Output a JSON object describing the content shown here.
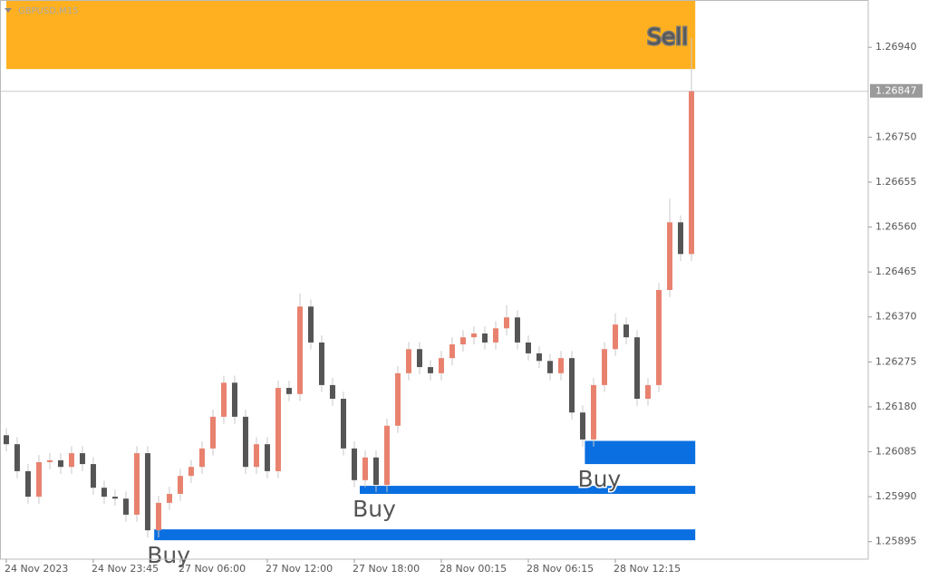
{
  "chart_data": {
    "type": "candlestick",
    "title": "GBPUSD,M15",
    "open": [
      1.2612,
      1.26101,
      1.26044,
      1.2599,
      1.26063,
      1.26067,
      1.26053,
      1.26082,
      1.26059,
      1.26009,
      1.2599,
      1.25986,
      1.25952,
      1.26082,
      1.25919,
      1.25977,
      1.25996,
      1.26034,
      1.26053,
      1.26092,
      1.26159,
      1.26231,
      1.26159,
      1.26053,
      1.26101,
      1.26044,
      1.2622,
      1.26207,
      1.26392,
      1.26316,
      1.26226,
      1.26197,
      1.26092,
      1.26025,
      1.26073,
      1.26015,
      1.2614,
      1.26251,
      1.26302,
      1.26264,
      1.26251,
      1.26283,
      1.26312,
      1.26327,
      1.26335,
      1.26316,
      1.26346,
      1.26369,
      1.26316,
      1.26293,
      1.26277,
      1.26251,
      1.26283,
      1.26168,
      1.26111,
      1.26226,
      1.26302,
      1.26354,
      1.26327,
      1.26197,
      1.26226,
      1.26427,
      1.2657,
      1.26503
    ],
    "high": [
      1.26135,
      1.26116,
      1.26059,
      1.26078,
      1.26082,
      1.26082,
      1.26097,
      1.26097,
      1.26074,
      1.26024,
      1.26005,
      1.26001,
      1.26097,
      1.26097,
      1.25992,
      1.26011,
      1.26049,
      1.26068,
      1.26107,
      1.26174,
      1.26246,
      1.26246,
      1.26174,
      1.26116,
      1.26116,
      1.26235,
      1.26235,
      1.2642,
      1.26407,
      1.26331,
      1.26241,
      1.26212,
      1.26107,
      1.26088,
      1.26088,
      1.26155,
      1.26266,
      1.26317,
      1.26317,
      1.26279,
      1.26298,
      1.26327,
      1.26342,
      1.2635,
      1.2635,
      1.26361,
      1.26395,
      1.26384,
      1.26331,
      1.26308,
      1.26292,
      1.26298,
      1.26298,
      1.26183,
      1.26241,
      1.26317,
      1.26378,
      1.26369,
      1.26342,
      1.26241,
      1.26442,
      1.2662,
      1.26585,
      1.2696
    ],
    "low": [
      1.26086,
      1.26029,
      1.25975,
      1.25975,
      1.26048,
      1.26038,
      1.26038,
      1.26044,
      1.25994,
      1.25975,
      1.25971,
      1.25937,
      1.25937,
      1.25904,
      1.25904,
      1.25962,
      1.25981,
      1.26019,
      1.26038,
      1.26077,
      1.26144,
      1.26144,
      1.26038,
      1.26038,
      1.26029,
      1.26029,
      1.26192,
      1.26192,
      1.26301,
      1.26211,
      1.26182,
      1.26077,
      1.2601,
      1.2601,
      1.26,
      1.26,
      1.26125,
      1.26236,
      1.26249,
      1.26236,
      1.26236,
      1.26268,
      1.26297,
      1.26312,
      1.26301,
      1.26301,
      1.26331,
      1.26301,
      1.26278,
      1.26262,
      1.26236,
      1.26236,
      1.26153,
      1.26096,
      1.26096,
      1.26211,
      1.26287,
      1.26312,
      1.26182,
      1.26182,
      1.26211,
      1.26412,
      1.26488,
      1.26488
    ],
    "close": [
      1.26101,
      1.26044,
      1.2599,
      1.26063,
      1.26067,
      1.26053,
      1.26082,
      1.26059,
      1.26009,
      1.2599,
      1.25986,
      1.25952,
      1.26082,
      1.25919,
      1.25977,
      1.25996,
      1.26034,
      1.26053,
      1.26092,
      1.26159,
      1.26231,
      1.26159,
      1.26053,
      1.26101,
      1.26044,
      1.2622,
      1.26207,
      1.26392,
      1.26316,
      1.26226,
      1.26197,
      1.26092,
      1.26025,
      1.26073,
      1.26015,
      1.2614,
      1.26251,
      1.26302,
      1.26264,
      1.26251,
      1.26283,
      1.26312,
      1.26327,
      1.26335,
      1.26316,
      1.26346,
      1.26369,
      1.26316,
      1.26293,
      1.26277,
      1.26251,
      1.26283,
      1.26168,
      1.26111,
      1.26226,
      1.26302,
      1.26354,
      1.26327,
      1.26197,
      1.26226,
      1.26427,
      1.2657,
      1.26503,
      1.26847
    ],
    "up_color": "#e8826f",
    "down_color": "#555555",
    "wick_color": "#c8c8c8",
    "xlim": [
      -0.58,
      79.25
    ],
    "xticks": [
      {
        "value": 0,
        "label": "24 Nov 2023"
      },
      {
        "value": 8,
        "label": "24 Nov 23:45"
      },
      {
        "value": 16,
        "label": "27 Nov 06:00"
      },
      {
        "value": 24,
        "label": "27 Nov 12:00"
      },
      {
        "value": 32,
        "label": "27 Nov 18:00"
      },
      {
        "value": 40,
        "label": "28 Nov 00:15"
      },
      {
        "value": 48,
        "label": "28 Nov 06:15"
      },
      {
        "value": 56,
        "label": "28 Nov 12:15"
      }
    ],
    "ylim": [
      1.25858,
      1.2704
    ],
    "yticks": [
      {
        "value": 1.2694,
        "label": "1.26940"
      },
      {
        "value": 1.2675,
        "label": "1.26750"
      },
      1.26655,
      {
        "value": 1.2656,
        "label": "1.26560"
      },
      1.26465,
      {
        "value": 1.2637,
        "label": "1.26370"
      },
      1.26275,
      {
        "value": 1.2618,
        "label": "1.26180"
      },
      1.26085,
      {
        "value": 1.2599,
        "label": "1.25990"
      },
      1.25895
    ],
    "current_price": 1.26847,
    "zones": [
      {
        "label": "Sell",
        "color": "#ffb020",
        "start": 0,
        "low": 1.26894,
        "high": 1.2704
      },
      {
        "label": "Buy",
        "color": "#0a6fe0",
        "start": 53.2,
        "low": 1.26059,
        "high": 1.26108
      },
      {
        "label": "Buy",
        "color": "#0a6fe0",
        "start": 32.5,
        "low": 1.25996,
        "high": 1.26013
      },
      {
        "label": "Buy",
        "color": "#0a6fe0",
        "start": 13.6,
        "low": 1.25898,
        "high": 1.25921
      }
    ]
  }
}
